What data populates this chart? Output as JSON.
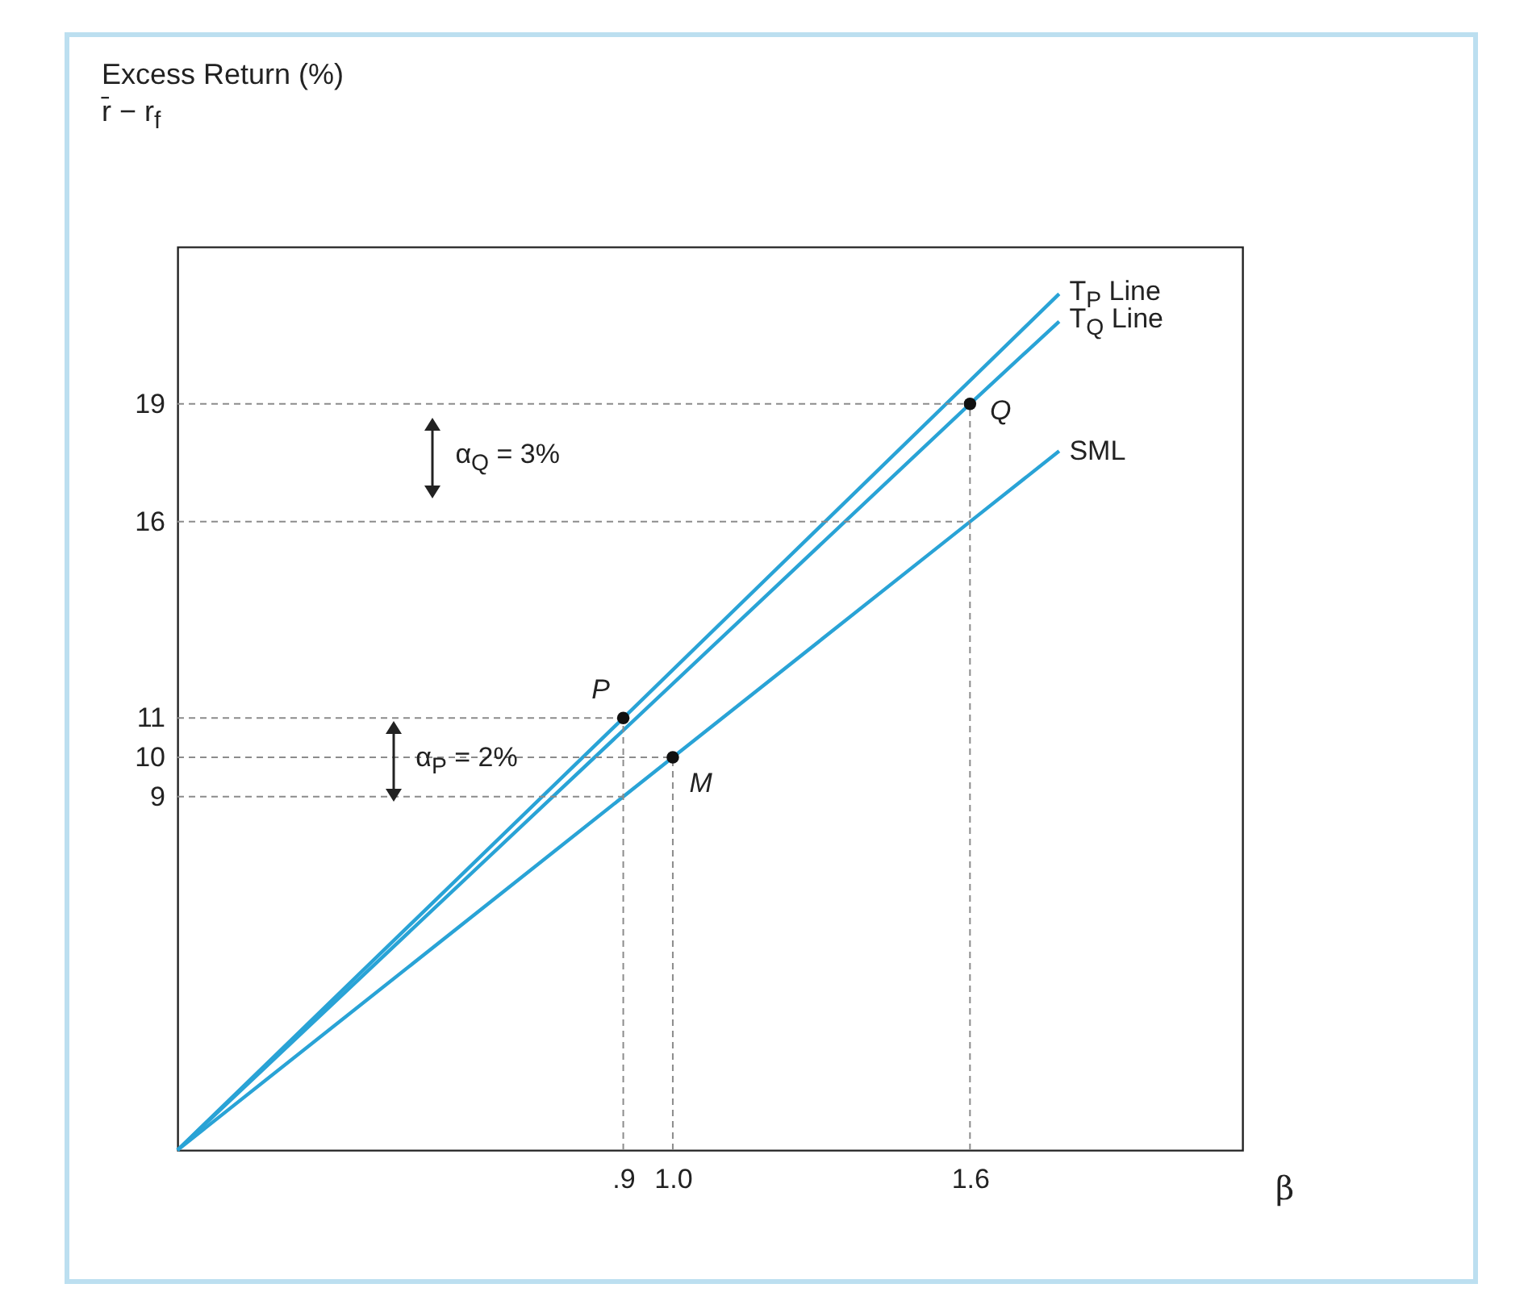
{
  "chart_data": {
    "type": "line",
    "ylabel": "Excess Return (%)\nr̄ − r$_{f}$",
    "xlabel": "β",
    "xlim": [
      0,
      2.15
    ],
    "ylim": [
      0,
      23
    ],
    "xticks": [
      {
        "value": 0.9,
        "label": ".9"
      },
      {
        "value": 1,
        "label": "1.0"
      },
      1.6
    ],
    "yticks": [
      9,
      10,
      11,
      16,
      19
    ],
    "series": [
      {
        "name": "T$_{P}$ Line",
        "color": "#29a3d6",
        "x": [
          0,
          0.9,
          1.78
        ],
        "values": [
          0,
          11,
          21.8
        ]
      },
      {
        "name": "T$_{Q}$ Line",
        "color": "#29a3d6",
        "x": [
          0,
          1.6,
          1.78
        ],
        "values": [
          0,
          19,
          21.1
        ]
      },
      {
        "name": "SML",
        "color": "#29a3d6",
        "x": [
          0,
          1,
          1.6,
          1.78
        ],
        "values": [
          0,
          10,
          16,
          17.8
        ]
      },
      {
        "type": "line",
        "line_style": "dashed",
        "color": "#8c8c8c",
        "x": [
          0,
          1.6
        ],
        "values": [
          19,
          19
        ]
      },
      {
        "type": "line",
        "line_style": "dashed",
        "color": "#8c8c8c",
        "x": [
          0,
          1.6
        ],
        "values": [
          16,
          16
        ]
      },
      {
        "type": "line",
        "line_style": "dashed",
        "color": "#8c8c8c",
        "x": [
          0,
          0.9
        ],
        "values": [
          11,
          11
        ]
      },
      {
        "type": "line",
        "line_style": "dashed",
        "color": "#8c8c8c",
        "x": [
          0,
          1
        ],
        "values": [
          10,
          10
        ]
      },
      {
        "type": "line",
        "line_style": "dashed",
        "color": "#8c8c8c",
        "x": [
          0,
          0.9
        ],
        "values": [
          9,
          9
        ]
      },
      {
        "type": "line",
        "line_style": "dashed",
        "color": "#8c8c8c",
        "x": [
          0.9,
          0.9
        ],
        "values": [
          0,
          11
        ]
      },
      {
        "type": "line",
        "line_style": "dashed",
        "color": "#8c8c8c",
        "x": [
          1,
          1
        ],
        "values": [
          0,
          10
        ]
      },
      {
        "type": "line",
        "line_style": "dashed",
        "color": "#8c8c8c",
        "x": [
          1.6,
          1.6
        ],
        "values": [
          0,
          19
        ]
      },
      {
        "type": "scatter",
        "marker": "circle",
        "color": "#111111",
        "x": [
          0.9,
          1,
          1.6
        ],
        "values": [
          11,
          10,
          19
        ]
      }
    ],
    "annotations": [
      {
        "text": "P",
        "x": 0.9,
        "y": 11
      },
      {
        "text": "M",
        "x": 1,
        "y": 10
      },
      {
        "text": "Q",
        "x": 1.6,
        "y": 19
      },
      {
        "text": "α$_{Q}$ = 3%",
        "x": 0.56,
        "y": 19
      },
      {
        "text": "α$_{P}$ = 2%",
        "x": 0.48,
        "y": 11
      }
    ]
  }
}
